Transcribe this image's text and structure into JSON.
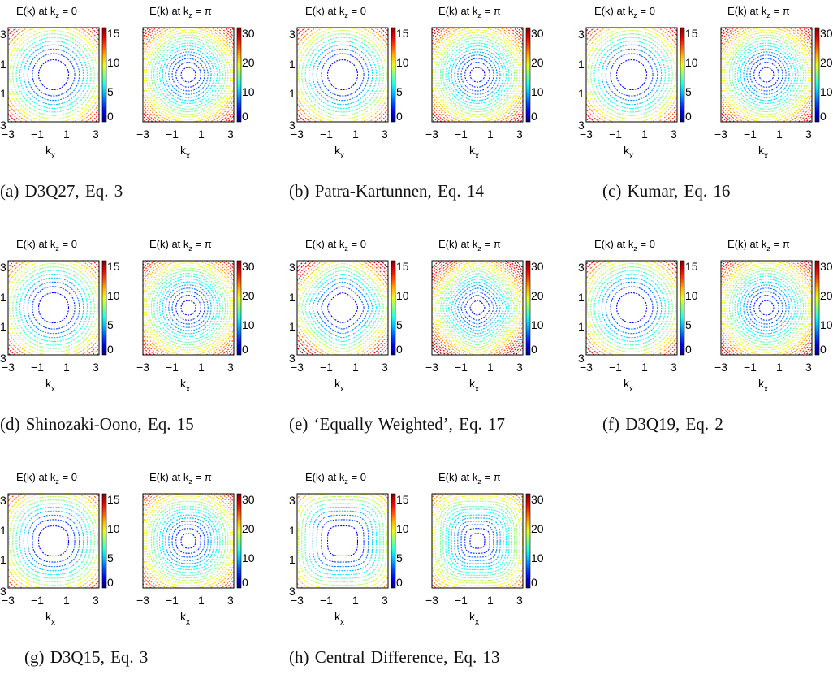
{
  "figure": {
    "panel_title_left_prefix": "E(k) at k",
    "panel_title_left_sub": "z",
    "panel_title_left_suffix": " = 0",
    "panel_title_right_prefix": "E(k) at k",
    "panel_title_right_sub": "z",
    "panel_title_right_suffix": " = π",
    "x_axis_label": "k",
    "x_axis_sub": "x",
    "x_ticks": [
      "−3",
      "−1",
      "1",
      "3"
    ],
    "y_ticks": [
      "3",
      "1",
      "1",
      "3"
    ],
    "colorbar_left_ticks": [
      "15",
      "10",
      "5",
      "0"
    ],
    "colorbar_right_ticks": [
      "30",
      "20",
      "10",
      "0"
    ]
  },
  "chart_data": [
    {
      "type": "heatmap",
      "id": "a",
      "caption": "(a) D3Q27, Eq. 3",
      "style": "contour",
      "shape": 2.0,
      "plots": [
        "E(k) at kz = 0",
        "E(k) at kz = π"
      ],
      "xlim": [
        -3,
        3
      ],
      "ylim": [
        -3,
        3
      ],
      "colorbar_left": [
        0,
        15
      ],
      "colorbar_right": [
        0,
        30
      ]
    },
    {
      "type": "heatmap",
      "id": "b",
      "caption": "(b) Patra-Kartunnen, Eq. 14",
      "style": "contour",
      "shape": 2.0,
      "plots": [
        "E(k) at kz = 0",
        "E(k) at kz = π"
      ],
      "xlim": [
        -3,
        3
      ],
      "ylim": [
        -3,
        3
      ],
      "colorbar_left": [
        0,
        15
      ],
      "colorbar_right": [
        0,
        30
      ]
    },
    {
      "type": "heatmap",
      "id": "c",
      "caption": "(c) Kumar, Eq. 16",
      "style": "contour",
      "shape": 2.0,
      "plots": [
        "E(k) at kz = 0",
        "E(k) at kz = π"
      ],
      "xlim": [
        -3,
        3
      ],
      "ylim": [
        -3,
        3
      ],
      "colorbar_left": [
        0,
        15
      ],
      "colorbar_right": [
        0,
        30
      ]
    },
    {
      "type": "heatmap",
      "id": "d",
      "caption": "(d) Shinozaki-Oono, Eq. 15",
      "style": "contour",
      "shape": 2.1,
      "plots": [
        "E(k) at kz = 0",
        "E(k) at kz = π"
      ],
      "xlim": [
        -3,
        3
      ],
      "ylim": [
        -3,
        3
      ],
      "colorbar_left": [
        0,
        15
      ],
      "colorbar_right": [
        0,
        30
      ]
    },
    {
      "type": "heatmap",
      "id": "e",
      "caption": "(e) ‘Equally Weighted’, Eq. 17",
      "style": "contour",
      "shape": 1.6,
      "plots": [
        "E(k) at kz = 0",
        "E(k) at kz = π"
      ],
      "xlim": [
        -3,
        3
      ],
      "ylim": [
        -3,
        3
      ],
      "colorbar_left": [
        0,
        15
      ],
      "colorbar_right": [
        0,
        30
      ]
    },
    {
      "type": "heatmap",
      "id": "f",
      "caption": "(f) D3Q19, Eq. 2",
      "style": "contour",
      "shape": 2.0,
      "plots": [
        "E(k) at kz = 0",
        "E(k) at kz = π"
      ],
      "xlim": [
        -3,
        3
      ],
      "ylim": [
        -3,
        3
      ],
      "colorbar_left": [
        0,
        15
      ],
      "colorbar_right": [
        0,
        30
      ]
    },
    {
      "type": "heatmap",
      "id": "g",
      "caption": "(g) D3Q15, Eq. 3",
      "style": "contour",
      "shape": 2.4,
      "plots": [
        "E(k) at kz = 0",
        "E(k) at kz = π"
      ],
      "xlim": [
        -3,
        3
      ],
      "ylim": [
        -3,
        3
      ],
      "colorbar_left": [
        0,
        15
      ],
      "colorbar_right": [
        0,
        30
      ]
    },
    {
      "type": "heatmap",
      "id": "h",
      "caption": "(h) Central Difference, Eq. 13",
      "style": "contour",
      "shape": 3.4,
      "plots": [
        "E(k) at kz = 0",
        "E(k) at kz = π"
      ],
      "xlim": [
        -3,
        3
      ],
      "ylim": [
        -3,
        3
      ],
      "colorbar_left": [
        0,
        15
      ],
      "colorbar_right": [
        0,
        30
      ]
    }
  ]
}
